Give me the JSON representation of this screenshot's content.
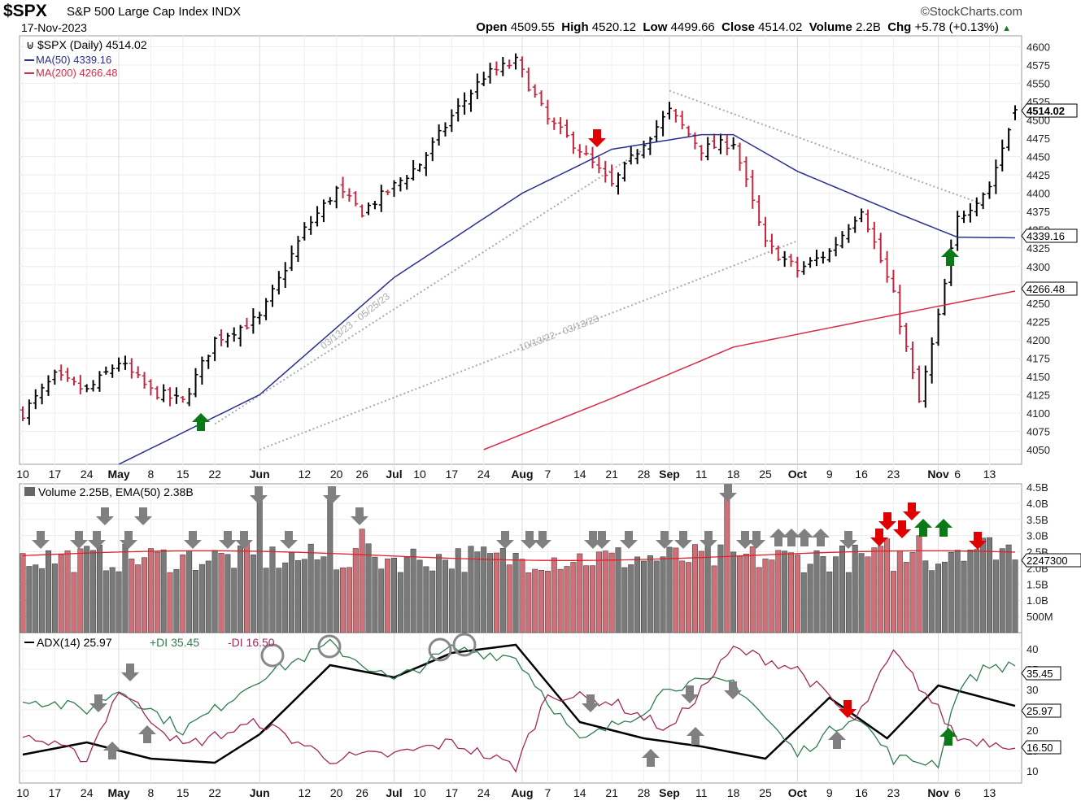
{
  "header": {
    "ticker": "$SPX",
    "name": "S&P 500 Large Cap Index",
    "exchange": "INDX",
    "date": "17-Nov-2023",
    "source": "©StockCharts.com",
    "open_label": "Open",
    "open": "4509.55",
    "high_label": "High",
    "high": "4520.12",
    "low_label": "Low",
    "low": "4499.66",
    "close_label": "Close",
    "close": "4514.02",
    "volume_label": "Volume",
    "volume": "2.2B",
    "chg_label": "Chg",
    "chg": "+5.78 (+0.13%)",
    "chg_arrow": "▲"
  },
  "price_panel": {
    "legend_main": "$SPX (Daily) 4514.02",
    "legend_ma50": "MA(50) 4339.16",
    "legend_ma200": "MA(200) 4266.48",
    "tag_close": "4514.02",
    "tag_ma50": "4339.16",
    "tag_ma200": "4266.48",
    "trend1_label": "03/13/23 - 05/25/23",
    "trend2_label": "10/13/22 - 03/13/23"
  },
  "volume_panel": {
    "legend": "Volume 2.25B, EMA(50) 2.38B",
    "tag_volume": "2247300"
  },
  "adx_panel": {
    "legend_adx": "ADX(14) 25.97",
    "legend_pdi": "+DI 35.45",
    "legend_mdi": "-DI 16.50",
    "tag_pdi": "35.45",
    "tag_adx": "25.97",
    "tag_mdi": "16.50"
  },
  "colors": {
    "up": "#000000",
    "down": "#c2273f",
    "ma50": "#2b2f8f",
    "ma200": "#d62c4c",
    "pdi": "#2e7d4f",
    "mdi": "#a3285a",
    "adx": "#000000",
    "vol_up": "#7a7a7a",
    "vol_down": "#cf6f78",
    "arrow_green": "#0a7a16",
    "arrow_red": "#e00000",
    "arrow_gray": "#808080"
  },
  "chart_data": [
    {
      "type": "ohlc",
      "title": "$SPX (Daily)",
      "ylim": [
        4030,
        4615
      ],
      "y_ticks": [
        4050,
        4075,
        4100,
        4125,
        4150,
        4175,
        4200,
        4225,
        4250,
        4275,
        4300,
        4325,
        4350,
        4375,
        4400,
        4425,
        4450,
        4475,
        4500,
        4525,
        4550,
        4575,
        4600
      ],
      "x_tick_labels": [
        "10",
        "17",
        "24",
        "May",
        "8",
        "15",
        "22",
        "Jun",
        "12",
        "20",
        "26",
        "Jul",
        "10",
        "17",
        "24",
        "Aug",
        "7",
        "14",
        "21",
        "28",
        "Sep",
        "11",
        "18",
        "25",
        "Oct",
        "9",
        "16",
        "23",
        "Nov",
        "6",
        "13"
      ],
      "close_anchors": {
        "dates": [
          "Apr 10",
          "Apr 17",
          "Apr 24",
          "May 1",
          "May 8",
          "May 15",
          "May 22",
          "Jun 1",
          "Jun 12",
          "Jun 20",
          "Jun 26",
          "Jul 3",
          "Jul 10",
          "Jul 17",
          "Jul 24",
          "Jul 31",
          "Aug 7",
          "Aug 14",
          "Aug 21",
          "Aug 28",
          "Sep 1",
          "Sep 11",
          "Sep 18",
          "Sep 25",
          "Oct 2",
          "Oct 9",
          "Oct 16",
          "Oct 23",
          "Oct 27",
          "Nov 1",
          "Nov 6",
          "Nov 13",
          "Nov 17"
        ],
        "values": [
          4100,
          4150,
          4130,
          4170,
          4130,
          4115,
          4200,
          4230,
          4350,
          4405,
          4375,
          4410,
          4440,
          4505,
          4560,
          4580,
          4500,
          4460,
          4410,
          4470,
          4512,
          4460,
          4470,
          4330,
          4295,
          4320,
          4380,
          4260,
          4115,
          4230,
          4365,
          4410,
          4514
        ]
      },
      "ma50_anchors": {
        "dates": [
          "May 1",
          "Jun 1",
          "Jul 3",
          "Aug 1",
          "Aug 21",
          "Sep 11",
          "Sep 18",
          "Oct 2",
          "Oct 23",
          "Nov 6",
          "Nov 17"
        ],
        "values": [
          4030,
          4125,
          4285,
          4400,
          4460,
          4480,
          4480,
          4430,
          4375,
          4340,
          4339.16
        ]
      },
      "ma200_anchors": {
        "dates": [
          "Jul 24",
          "Aug 21",
          "Sep 18",
          "Oct 16",
          "Nov 17"
        ],
        "values": [
          4050,
          4120,
          4190,
          4225,
          4266.48
        ]
      },
      "trendlines": [
        {
          "label": "03/13/23 - 05/25/23",
          "from": [
            "May 22",
            4085
          ],
          "to": [
            "Aug 28",
            4460
          ]
        },
        {
          "label": "10/13/22 - 03/13/23",
          "from": [
            "Jun 1",
            4050
          ],
          "to": [
            "Oct 2",
            4335
          ]
        },
        {
          "label": "",
          "from": [
            "Sep 1",
            4540
          ],
          "to": [
            "Nov 10",
            4385
          ]
        }
      ],
      "last": {
        "open": 4509.55,
        "high": 4520.12,
        "low": 4499.66,
        "close": 4514.02,
        "ma50": 4339.16,
        "ma200": 4266.48
      }
    },
    {
      "type": "bar",
      "title": "Volume",
      "legend": "Volume 2.25B, EMA(50) 2.38B",
      "ylim": [
        0,
        4.5
      ],
      "y_ticks": [
        "500M",
        "1.0B",
        "1.5B",
        "2.0B",
        "2.5B",
        "3.0B",
        "3.5B",
        "4.0B",
        "4.5B"
      ],
      "baseline_billions": 2.3,
      "spikes": [
        {
          "date": "Jun 1",
          "value": 4.5
        },
        {
          "date": "Jun 16",
          "value": 4.1
        },
        {
          "date": "Jun 26",
          "value": 3.2
        },
        {
          "date": "Sep 15",
          "value": 4.2
        },
        {
          "date": "Oct 20",
          "value": 2.9
        },
        {
          "date": "Oct 27",
          "value": 3.0
        }
      ],
      "ema50_billions": 2.38,
      "last_billions": 2.25
    },
    {
      "type": "line",
      "title": "ADX(14)",
      "ylim": [
        7,
        44
      ],
      "y_ticks": [
        10,
        15,
        20,
        25,
        30,
        35,
        40
      ],
      "series": [
        {
          "name": "ADX(14)",
          "anchors": {
            "dates": [
              "Apr 10",
              "Apr 24",
              "May 8",
              "May 22",
              "Jun 1",
              "Jun 16",
              "Jul 3",
              "Jul 17",
              "Jul 31",
              "Aug 14",
              "Aug 28",
              "Sep 11",
              "Sep 25",
              "Oct 9",
              "Oct 20",
              "Nov 1",
              "Nov 17"
            ],
            "values": [
              14,
              17,
              13,
              12,
              19,
              36,
              33,
              39,
              41,
              22,
              18,
              16,
              13,
              28,
              18,
              31,
              25.97
            ]
          }
        },
        {
          "name": "+DI",
          "anchors": {
            "dates": [
              "Apr 10",
              "Apr 24",
              "May 1",
              "May 15",
              "May 22",
              "Jun 1",
              "Jun 12",
              "Jun 16",
              "Jul 3",
              "Jul 17",
              "Jul 31",
              "Aug 14",
              "Aug 28",
              "Sep 4",
              "Sep 18",
              "Oct 2",
              "Oct 13",
              "Oct 23",
              "Nov 1",
              "Nov 6",
              "Nov 13",
              "Nov 17"
            ],
            "values": [
              28,
              25,
              30,
              20,
              25,
              33,
              38,
              41,
              32,
              40,
              38,
              17,
              25,
              31,
              32,
              14,
              24,
              13,
              12,
              30,
              36,
              35.45
            ]
          }
        },
        {
          "name": "-DI",
          "anchors": {
            "dates": [
              "Apr 10",
              "Apr 24",
              "May 1",
              "May 15",
              "Jun 1",
              "Jun 16",
              "Jul 3",
              "Jul 17",
              "Jul 31",
              "Aug 7",
              "Aug 21",
              "Sep 4",
              "Sep 18",
              "Oct 2",
              "Oct 13",
              "Oct 23",
              "Nov 1",
              "Nov 6",
              "Nov 17"
            ],
            "values": [
              19,
              13,
              30,
              16,
              22,
              13,
              14,
              17,
              11,
              29,
              27,
              20,
              40,
              35,
              22,
              39,
              25,
              18,
              16.5
            ]
          }
        }
      ],
      "last": {
        "pdi": 35.45,
        "adx": 25.97,
        "mdi": 16.5
      }
    }
  ]
}
